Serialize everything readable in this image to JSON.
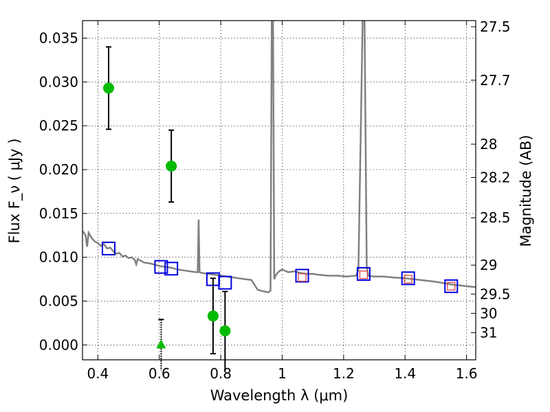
{
  "chart_data": {
    "type": "scatter",
    "title": "",
    "xlabel": "Wavelength  λ (μm)",
    "ylabel": "Flux  F_ν  ( μJy )",
    "ylabel_right": "Magnitude (AB)",
    "xlim": [
      0.35,
      1.63
    ],
    "ylim": [
      -0.0017,
      0.037
    ],
    "grid": true,
    "x_ticks": [
      0.4,
      0.6,
      0.8,
      1.0,
      1.2,
      1.4,
      1.6
    ],
    "x_tick_labels": [
      "0.4",
      "0.6",
      "0.8",
      "1",
      "1.2",
      "1.4",
      "1.6"
    ],
    "y_ticks": [
      0.0,
      0.005,
      0.01,
      0.015,
      0.02,
      0.025,
      0.03,
      0.035
    ],
    "y_tick_labels": [
      "0.000",
      "0.005",
      "0.010",
      "0.015",
      "0.020",
      "0.025",
      "0.030",
      "0.035"
    ],
    "mag_ticks": [
      {
        "label": "27.5",
        "flux": 0.0363
      },
      {
        "label": "27.7",
        "flux": 0.0302
      },
      {
        "label": "28",
        "flux": 0.0229
      },
      {
        "label": "28.2",
        "flux": 0.0191
      },
      {
        "label": "28.5",
        "flux": 0.0145
      },
      {
        "label": "29",
        "flux": 0.0091
      },
      {
        "label": "29.5",
        "flux": 0.0058
      },
      {
        "label": "30",
        "flux": 0.0036
      },
      {
        "label": "31",
        "flux": 0.0014
      }
    ],
    "series": [
      {
        "kind": "model_spectrum",
        "color": "#808080",
        "points": [
          [
            0.35,
            0.013
          ],
          [
            0.36,
            0.0125
          ],
          [
            0.365,
            0.0112
          ],
          [
            0.37,
            0.0128
          ],
          [
            0.38,
            0.0122
          ],
          [
            0.39,
            0.0118
          ],
          [
            0.4,
            0.0116
          ],
          [
            0.41,
            0.0113
          ],
          [
            0.42,
            0.0115
          ],
          [
            0.43,
            0.011
          ],
          [
            0.44,
            0.0111
          ],
          [
            0.45,
            0.0107
          ],
          [
            0.46,
            0.0104
          ],
          [
            0.47,
            0.0105
          ],
          [
            0.48,
            0.0101
          ],
          [
            0.49,
            0.0102
          ],
          [
            0.5,
            0.0099
          ],
          [
            0.51,
            0.01
          ],
          [
            0.52,
            0.0097
          ],
          [
            0.525,
            0.0092
          ],
          [
            0.53,
            0.0098
          ],
          [
            0.55,
            0.0094
          ],
          [
            0.57,
            0.0093
          ],
          [
            0.59,
            0.0091
          ],
          [
            0.6,
            0.009
          ],
          [
            0.62,
            0.0089
          ],
          [
            0.64,
            0.0088
          ],
          [
            0.66,
            0.0086
          ],
          [
            0.68,
            0.0085
          ],
          [
            0.7,
            0.0084
          ],
          [
            0.72,
            0.0083
          ],
          [
            0.725,
            0.0083
          ],
          [
            0.728,
            0.0143
          ],
          [
            0.731,
            0.0083
          ],
          [
            0.74,
            0.0082
          ],
          [
            0.76,
            0.0081
          ],
          [
            0.78,
            0.008
          ],
          [
            0.8,
            0.0079
          ],
          [
            0.82,
            0.0078
          ],
          [
            0.84,
            0.0077
          ],
          [
            0.86,
            0.0076
          ],
          [
            0.88,
            0.0075
          ],
          [
            0.9,
            0.0074
          ],
          [
            0.92,
            0.0063
          ],
          [
            0.94,
            0.0061
          ],
          [
            0.955,
            0.006
          ],
          [
            0.962,
            0.0062
          ],
          [
            0.966,
            0.0375
          ],
          [
            0.97,
            0.0375
          ],
          [
            0.974,
            0.0075
          ],
          [
            0.98,
            0.008
          ],
          [
            0.99,
            0.0084
          ],
          [
            1.0,
            0.0086
          ],
          [
            1.02,
            0.0083
          ],
          [
            1.04,
            0.0084
          ],
          [
            1.06,
            0.0082
          ],
          [
            1.08,
            0.0081
          ],
          [
            1.1,
            0.0081
          ],
          [
            1.12,
            0.008
          ],
          [
            1.15,
            0.0079
          ],
          [
            1.18,
            0.0079
          ],
          [
            1.21,
            0.0078
          ],
          [
            1.24,
            0.0079
          ],
          [
            1.248,
            0.0085
          ],
          [
            1.262,
            0.0375
          ],
          [
            1.268,
            0.0375
          ],
          [
            1.275,
            0.009
          ],
          [
            1.28,
            0.0079
          ],
          [
            1.3,
            0.0078
          ],
          [
            1.33,
            0.0078
          ],
          [
            1.36,
            0.0077
          ],
          [
            1.4,
            0.0076
          ],
          [
            1.45,
            0.0074
          ],
          [
            1.5,
            0.0072
          ],
          [
            1.55,
            0.0069
          ],
          [
            1.6,
            0.0067
          ],
          [
            1.63,
            0.0066
          ]
        ]
      },
      {
        "kind": "model_photometry",
        "marker": "square",
        "color": "#0000dd",
        "points": [
          [
            0.435,
            0.011
          ],
          [
            0.606,
            0.0089
          ],
          [
            0.639,
            0.0087
          ],
          [
            0.775,
            0.0075
          ],
          [
            0.814,
            0.0071
          ],
          [
            1.065,
            0.0079
          ],
          [
            1.265,
            0.0081
          ],
          [
            1.41,
            0.0076
          ],
          [
            1.55,
            0.0067
          ]
        ]
      },
      {
        "kind": "nir_photometry",
        "marker": "square",
        "color": "#dd4444",
        "points": [
          [
            1.065,
            0.0077
          ],
          [
            1.265,
            0.008
          ],
          [
            1.41,
            0.0075
          ],
          [
            1.55,
            0.0067
          ]
        ]
      },
      {
        "kind": "detections",
        "marker": "circle",
        "color": "#00bb00",
        "points": [
          {
            "x": 0.435,
            "y": 0.0293,
            "err": 0.0047
          },
          {
            "x": 0.639,
            "y": 0.0204,
            "err": 0.0041
          },
          {
            "x": 0.775,
            "y": 0.0033,
            "err": 0.0043
          },
          {
            "x": 0.814,
            "y": 0.0016,
            "err": 0.0045
          }
        ]
      },
      {
        "kind": "upper_limit",
        "marker": "triangle",
        "color": "#00bb00",
        "points": [
          {
            "x": 0.606,
            "y": 0.0,
            "err": 0.0029
          }
        ]
      }
    ]
  }
}
